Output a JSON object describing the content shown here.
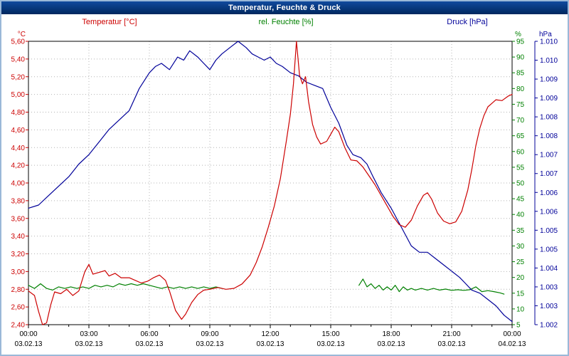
{
  "window": {
    "title": "Temperatur, Feuchte & Druck"
  },
  "colors": {
    "temperature": "#cc0000",
    "humidity": "#008000",
    "pressure": "#000099",
    "grid": "#b4b4b4",
    "frame": "#000000",
    "axis_text": "#000000",
    "title_bar_bg": "#00327d",
    "title_text": "#ffffff",
    "window_border": "#9ab8d8"
  },
  "chart_data": {
    "type": "line",
    "title": "Temperatur, Feuchte & Druck",
    "x_axis": {
      "unit": "time",
      "hours_range": [
        0,
        24
      ],
      "major_tick_hours": 3,
      "minor_tick_hours": 1,
      "tick_labels": [
        {
          "time": "00:00",
          "date": "03.02.13"
        },
        {
          "time": "03:00",
          "date": "03.02.13"
        },
        {
          "time": "06:00",
          "date": "03.02.13"
        },
        {
          "time": "09:00",
          "date": "03.02.13"
        },
        {
          "time": "12:00",
          "date": "03.02.13"
        },
        {
          "time": "15:00",
          "date": "03.02.13"
        },
        {
          "time": "18:00",
          "date": "03.02.13"
        },
        {
          "time": "21:00",
          "date": "03.02.13"
        },
        {
          "time": "00:00",
          "date": "04.02.13"
        }
      ]
    },
    "axes": {
      "temperature": {
        "label": "Temperatur [°C]",
        "unit": "°C",
        "min": 2.4,
        "max": 5.6,
        "tick_labels": [
          "5,60",
          "5,40",
          "5,20",
          "5,00",
          "4,80",
          "4,60",
          "4,40",
          "4,20",
          "4,00",
          "3,80",
          "3,60",
          "3,40",
          "3,20",
          "3,00",
          "2,80",
          "2,60",
          "2,40"
        ]
      },
      "humidity": {
        "label": "rel. Feuchte [%]",
        "unit": "%",
        "min": 5,
        "max": 95,
        "tick_labels": [
          "95",
          "90",
          "85",
          "80",
          "75",
          "70",
          "65",
          "60",
          "55",
          "50",
          "45",
          "40",
          "35",
          "30",
          "25",
          "20",
          "15",
          "10",
          "5"
        ]
      },
      "pressure": {
        "label": "Druck [hPa]",
        "unit": "hPa",
        "min": 1.0015,
        "max": 1.0105,
        "tick_labels": [
          "1.010",
          "1.010",
          "1.009",
          "1.009",
          "1.008",
          "1.008",
          "1.007",
          "1.007",
          "1.006",
          "1.006",
          "1.005",
          "1.005",
          "1.004",
          "1.003",
          "1.003",
          "1.002"
        ]
      }
    },
    "series": [
      {
        "name": "Temperatur",
        "axis": "temperature",
        "color": "#cc0000",
        "points": [
          [
            0,
            2.78
          ],
          [
            0.3,
            2.73
          ],
          [
            0.5,
            2.55
          ],
          [
            0.7,
            2.4
          ],
          [
            0.9,
            2.42
          ],
          [
            1.1,
            2.62
          ],
          [
            1.3,
            2.77
          ],
          [
            1.6,
            2.75
          ],
          [
            1.9,
            2.8
          ],
          [
            2.2,
            2.73
          ],
          [
            2.5,
            2.78
          ],
          [
            2.8,
            3.0
          ],
          [
            3.0,
            3.08
          ],
          [
            3.2,
            2.97
          ],
          [
            3.5,
            2.99
          ],
          [
            3.8,
            3.01
          ],
          [
            4.0,
            2.95
          ],
          [
            4.3,
            2.98
          ],
          [
            4.6,
            2.93
          ],
          [
            5.0,
            2.93
          ],
          [
            5.3,
            2.9
          ],
          [
            5.6,
            2.87
          ],
          [
            5.9,
            2.89
          ],
          [
            6.2,
            2.93
          ],
          [
            6.5,
            2.96
          ],
          [
            6.8,
            2.9
          ],
          [
            7.0,
            2.78
          ],
          [
            7.3,
            2.56
          ],
          [
            7.6,
            2.46
          ],
          [
            7.8,
            2.52
          ],
          [
            8.1,
            2.65
          ],
          [
            8.4,
            2.74
          ],
          [
            8.7,
            2.79
          ],
          [
            9.0,
            2.8
          ],
          [
            9.4,
            2.82
          ],
          [
            9.8,
            2.8
          ],
          [
            10.2,
            2.81
          ],
          [
            10.6,
            2.86
          ],
          [
            11.0,
            2.96
          ],
          [
            11.3,
            3.1
          ],
          [
            11.6,
            3.28
          ],
          [
            11.9,
            3.5
          ],
          [
            12.2,
            3.74
          ],
          [
            12.5,
            4.05
          ],
          [
            12.8,
            4.48
          ],
          [
            13.0,
            4.78
          ],
          [
            13.15,
            5.12
          ],
          [
            13.3,
            5.6
          ],
          [
            13.45,
            5.22
          ],
          [
            13.6,
            5.12
          ],
          [
            13.75,
            5.2
          ],
          [
            13.9,
            4.92
          ],
          [
            14.1,
            4.66
          ],
          [
            14.3,
            4.52
          ],
          [
            14.5,
            4.44
          ],
          [
            14.8,
            4.47
          ],
          [
            15.0,
            4.55
          ],
          [
            15.2,
            4.63
          ],
          [
            15.4,
            4.58
          ],
          [
            15.7,
            4.4
          ],
          [
            16.0,
            4.26
          ],
          [
            16.3,
            4.25
          ],
          [
            16.6,
            4.18
          ],
          [
            16.9,
            4.08
          ],
          [
            17.2,
            3.98
          ],
          [
            17.5,
            3.86
          ],
          [
            17.8,
            3.74
          ],
          [
            18.1,
            3.62
          ],
          [
            18.4,
            3.53
          ],
          [
            18.7,
            3.5
          ],
          [
            19.0,
            3.58
          ],
          [
            19.3,
            3.74
          ],
          [
            19.6,
            3.86
          ],
          [
            19.8,
            3.89
          ],
          [
            20.0,
            3.82
          ],
          [
            20.3,
            3.66
          ],
          [
            20.6,
            3.57
          ],
          [
            20.9,
            3.54
          ],
          [
            21.2,
            3.56
          ],
          [
            21.5,
            3.68
          ],
          [
            21.8,
            3.92
          ],
          [
            22.0,
            4.15
          ],
          [
            22.2,
            4.42
          ],
          [
            22.4,
            4.62
          ],
          [
            22.6,
            4.76
          ],
          [
            22.8,
            4.86
          ],
          [
            23.0,
            4.9
          ],
          [
            23.2,
            4.94
          ],
          [
            23.5,
            4.93
          ],
          [
            23.8,
            4.98
          ],
          [
            24,
            5.0
          ]
        ]
      },
      {
        "name": "rel. Feuchte",
        "axis": "humidity",
        "color": "#008000",
        "segments": [
          [
            [
              0,
              17.5
            ],
            [
              0.3,
              16.5
            ],
            [
              0.6,
              18
            ],
            [
              0.9,
              16.5
            ],
            [
              1.2,
              16
            ],
            [
              1.5,
              17
            ],
            [
              1.8,
              16.5
            ],
            [
              2.1,
              17
            ],
            [
              2.4,
              16.5
            ],
            [
              2.7,
              17
            ],
            [
              3,
              16.5
            ],
            [
              3.3,
              17.5
            ],
            [
              3.6,
              17
            ],
            [
              3.9,
              17.5
            ],
            [
              4.2,
              17
            ],
            [
              4.5,
              18
            ],
            [
              4.8,
              17.5
            ],
            [
              5.1,
              18
            ],
            [
              5.4,
              17.5
            ],
            [
              5.7,
              18
            ],
            [
              6,
              17.5
            ],
            [
              6.3,
              17
            ],
            [
              6.6,
              16.5
            ],
            [
              6.9,
              17
            ],
            [
              7.2,
              16.5
            ],
            [
              7.5,
              17
            ],
            [
              7.8,
              16.5
            ],
            [
              8.1,
              17
            ],
            [
              8.4,
              16.5
            ],
            [
              8.7,
              17
            ],
            [
              9,
              16.5
            ],
            [
              9.3,
              17
            ],
            [
              9.6,
              16.5
            ]
          ],
          [
            [
              16.4,
              17.5
            ],
            [
              16.6,
              19.5
            ],
            [
              16.8,
              17
            ],
            [
              17,
              18
            ],
            [
              17.2,
              16.5
            ],
            [
              17.4,
              17.5
            ],
            [
              17.6,
              16
            ],
            [
              17.8,
              17
            ],
            [
              18,
              16
            ],
            [
              18.2,
              17.5
            ],
            [
              18.4,
              15.5
            ],
            [
              18.6,
              17
            ],
            [
              18.8,
              16
            ],
            [
              19,
              16.5
            ],
            [
              19.2,
              16
            ],
            [
              19.5,
              16.5
            ],
            [
              19.8,
              16
            ],
            [
              20.1,
              16.5
            ],
            [
              20.4,
              16
            ],
            [
              20.7,
              16.3
            ],
            [
              21,
              15.9
            ],
            [
              21.3,
              16.1
            ],
            [
              21.6,
              15.9
            ],
            [
              21.9,
              16.1
            ],
            [
              22.2,
              17
            ],
            [
              22.5,
              15.5
            ],
            [
              22.8,
              15.8
            ],
            [
              23.1,
              15.5
            ],
            [
              23.4,
              15.1
            ],
            [
              23.6,
              14.7
            ]
          ]
        ]
      },
      {
        "name": "Druck",
        "axis": "pressure",
        "color": "#000099",
        "points": [
          [
            0,
            1.0052
          ],
          [
            0.5,
            1.0053
          ],
          [
            1,
            1.0056
          ],
          [
            1.5,
            1.0059
          ],
          [
            2,
            1.0062
          ],
          [
            2.5,
            1.0066
          ],
          [
            3,
            1.0069
          ],
          [
            3.5,
            1.0073
          ],
          [
            4,
            1.0077
          ],
          [
            4.5,
            1.008
          ],
          [
            5,
            1.0083
          ],
          [
            5.5,
            1.009
          ],
          [
            6,
            1.0095
          ],
          [
            6.3,
            1.0097
          ],
          [
            6.6,
            1.0098
          ],
          [
            7,
            1.0096
          ],
          [
            7.4,
            1.01
          ],
          [
            7.7,
            1.0099
          ],
          [
            8,
            1.0102
          ],
          [
            8.4,
            1.01
          ],
          [
            8.7,
            1.0098
          ],
          [
            9,
            1.0096
          ],
          [
            9.3,
            1.0099
          ],
          [
            9.6,
            1.0101
          ],
          [
            10,
            1.0103
          ],
          [
            10.4,
            1.0105
          ],
          [
            10.8,
            1.0103
          ],
          [
            11.1,
            1.0101
          ],
          [
            11.4,
            1.01
          ],
          [
            11.7,
            1.0099
          ],
          [
            12,
            1.01
          ],
          [
            12.3,
            1.0098
          ],
          [
            12.6,
            1.0097
          ],
          [
            13,
            1.0095
          ],
          [
            13.4,
            1.0094
          ],
          [
            13.8,
            1.0092
          ],
          [
            14.2,
            1.0091
          ],
          [
            14.6,
            1.009
          ],
          [
            15,
            1.0084
          ],
          [
            15.4,
            1.0079
          ],
          [
            15.8,
            1.0072
          ],
          [
            16.1,
            1.0069
          ],
          [
            16.5,
            1.0068
          ],
          [
            16.8,
            1.0066
          ],
          [
            17.1,
            1.0062
          ],
          [
            17.5,
            1.0057
          ],
          [
            18,
            1.0052
          ],
          [
            18.5,
            1.0046
          ],
          [
            19,
            1.004
          ],
          [
            19.4,
            1.0038
          ],
          [
            19.8,
            1.0038
          ],
          [
            20.2,
            1.0036
          ],
          [
            20.6,
            1.0034
          ],
          [
            21,
            1.0032
          ],
          [
            21.4,
            1.003
          ],
          [
            21.7,
            1.0028
          ],
          [
            22,
            1.0026
          ],
          [
            22.4,
            1.0025
          ],
          [
            22.8,
            1.0023
          ],
          [
            23.2,
            1.0021
          ],
          [
            23.6,
            1.0018
          ],
          [
            24,
            1.0016
          ]
        ]
      }
    ],
    "legend_position": "top",
    "grid": true
  }
}
